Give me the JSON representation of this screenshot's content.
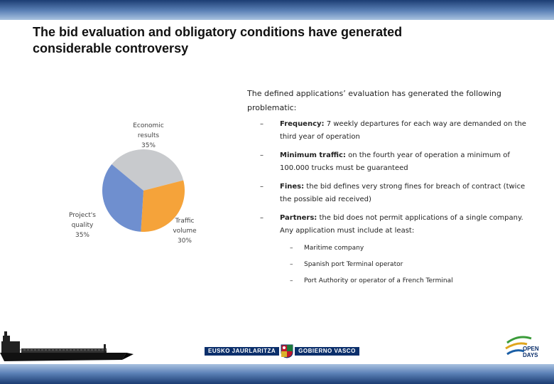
{
  "title_line1": "The bid evaluation and obligatory conditions have generated",
  "title_line2": "considerable controversy",
  "intro": "The defined applications’ evaluation has generated the following problematic:",
  "bullets": [
    {
      "label": "Frequency:",
      "text": " 7 weekly departures for each way are demanded on the third year of operation"
    },
    {
      "label": "Minimum traffic:",
      "text": " on the fourth year of operation a minimum of 100.000 trucks must be guaranteed"
    },
    {
      "label": "Fines:",
      "text": " the bid defines very strong fines for breach of contract (twice the possible aid received)"
    },
    {
      "label": "Partners:",
      "text": " the bid does not permit applications of a single company. Any application must include at least:"
    }
  ],
  "sub_items": [
    "Maritime company",
    "Spanish port Terminal operator",
    "Port Authority or operator of a French Terminal"
  ],
  "chart_data": {
    "type": "pie",
    "slices": [
      {
        "label_line1": "Economic",
        "label_line2": "results",
        "value_text": "35%",
        "value": 35,
        "color": "#c8cacd"
      },
      {
        "label_line1": "Traffic",
        "label_line2": "volume",
        "value_text": "30%",
        "value": 30,
        "color": "#f5a33a"
      },
      {
        "label_line1": "Project's",
        "label_line2": "quality",
        "value_text": "35%",
        "value": 35,
        "color": "#6f8fcf"
      }
    ]
  },
  "footer": {
    "logo_left": "EUSKO JAURLARITZA",
    "logo_right": "GOBIERNO VASCO",
    "od_line1": "OPEN",
    "od_line2": "DAYS"
  },
  "colors": {
    "bar_dark": "#1c3d73",
    "bar_light": "#a9c2e0"
  }
}
